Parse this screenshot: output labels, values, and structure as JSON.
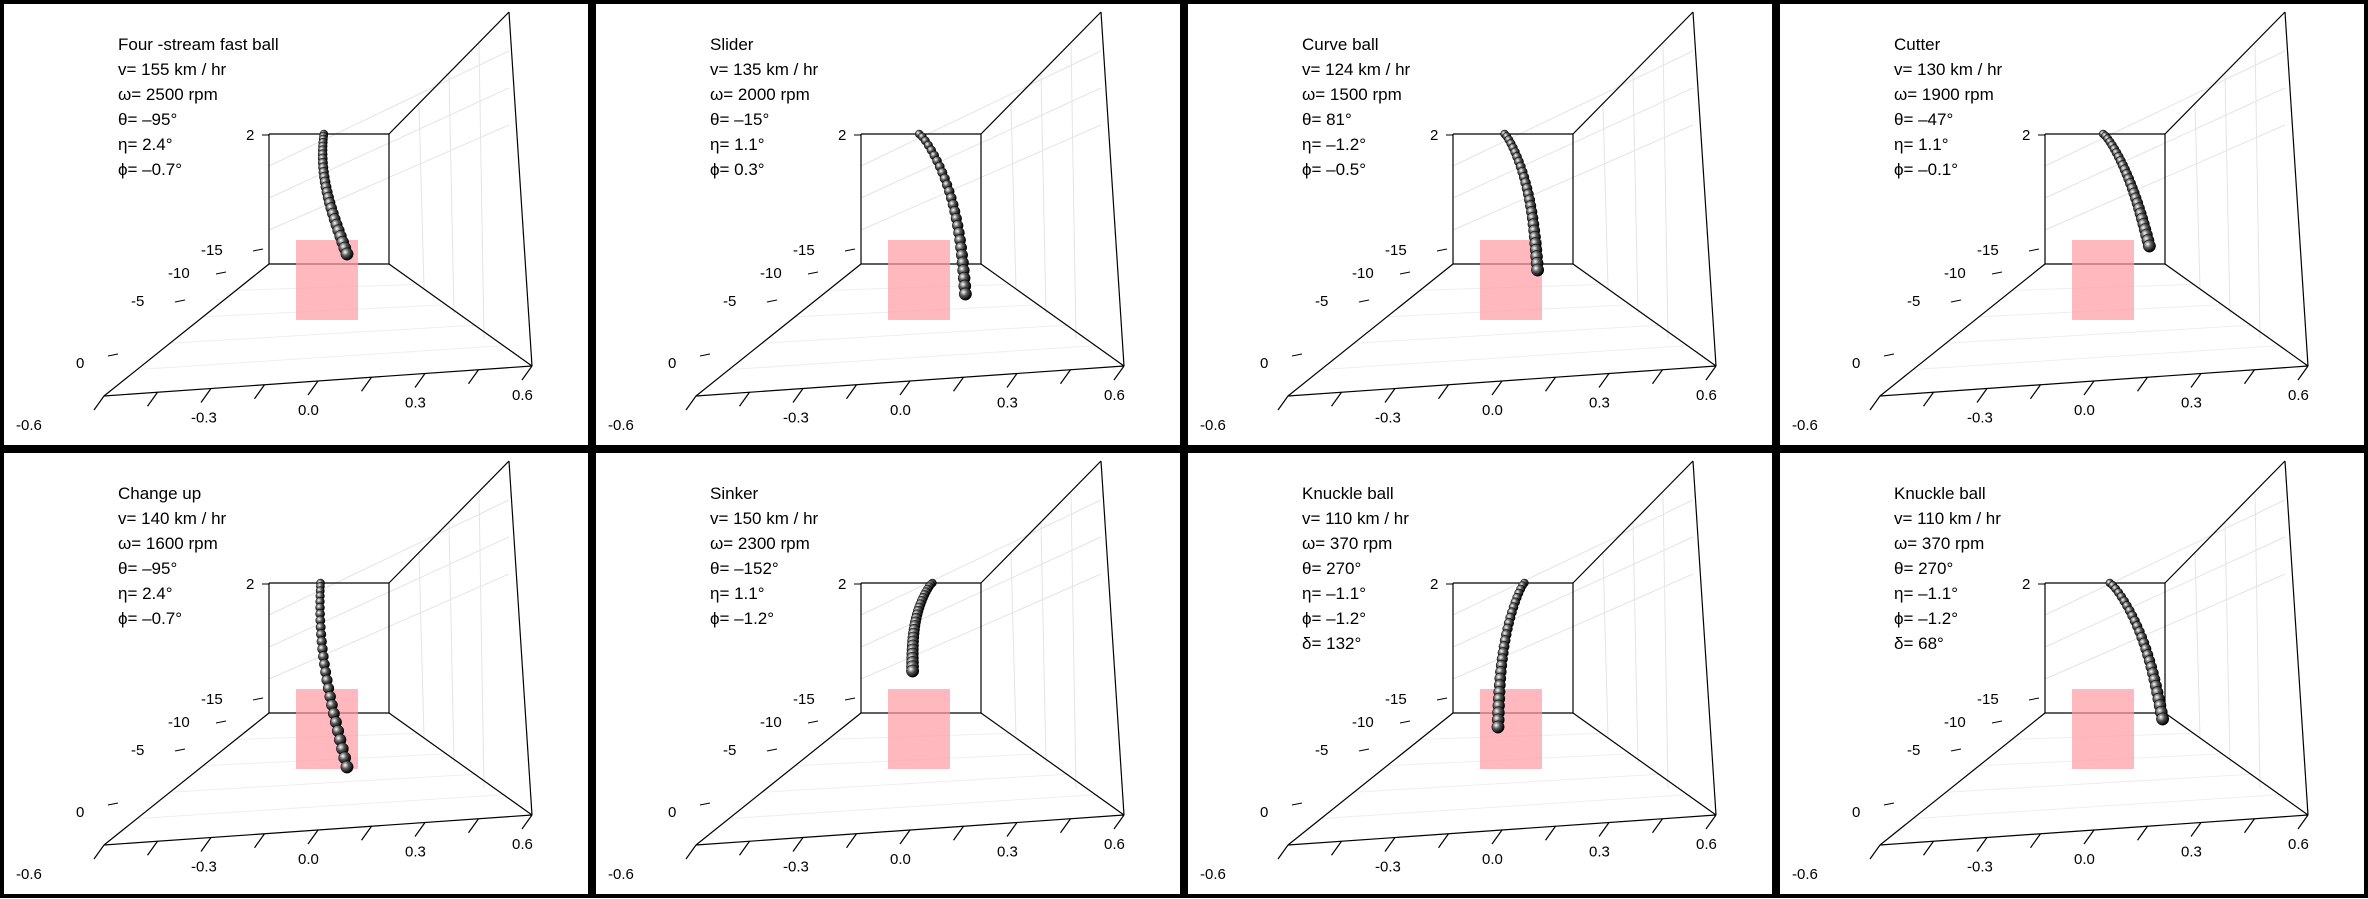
{
  "chart_data": [
    {
      "type": "scatter",
      "title": "Four -stream fast ball",
      "params": [
        "v= 155 km / hr",
        "ω= 2500 rpm",
        "θ=  –95°",
        "η=   2.4°",
        "ϕ=  –0.7°"
      ],
      "x_ticks": [
        "-0.6",
        "-0.3",
        "0.0",
        "0.3",
        "0.6"
      ],
      "z_ticks": [
        "0",
        "-5",
        "-10",
        "-15"
      ],
      "y_tick": "2",
      "trajectory": {
        "x_start": 0.03,
        "x_end": 0.1,
        "y_start": 2.0,
        "y_end": 0.5,
        "curve": -0.03
      },
      "zone_color": "#ff9aa2"
    },
    {
      "type": "scatter",
      "title": "Slider",
      "params": [
        "v= 135 km / hr",
        "ω= 2000 rpm",
        "θ=   –15°",
        "η=   1.1°",
        "ϕ=   0.3°"
      ],
      "x_ticks": [
        "-0.6",
        "-0.3",
        "0.0",
        "0.3",
        "0.6"
      ],
      "z_ticks": [
        "0",
        "-5",
        "-10",
        "-15"
      ],
      "y_tick": "2",
      "trajectory": {
        "x_start": 0.04,
        "x_end": 0.18,
        "y_start": 2.0,
        "y_end": 0.0,
        "curve": 0.03
      },
      "zone_color": "#ff9aa2"
    },
    {
      "type": "scatter",
      "title": "Curve ball",
      "params": [
        "v= 124 km / hr",
        "ω= 1500 rpm",
        "θ=   81°",
        "η=  –1.2°",
        "ϕ=  –0.5°"
      ],
      "x_ticks": [
        "-0.6",
        "-0.3",
        "0.0",
        "0.3",
        "0.6"
      ],
      "z_ticks": [
        "0",
        "-5",
        "-10",
        "-15"
      ],
      "y_tick": "2",
      "trajectory": {
        "x_start": 0.02,
        "x_end": 0.12,
        "y_start": 2.0,
        "y_end": 0.3,
        "curve": 0.02
      },
      "zone_color": "#ff9aa2"
    },
    {
      "type": "scatter",
      "title": "Cutter",
      "params": [
        "v= 130 km / hr",
        "ω= 1900 rpm",
        "θ=   –47°",
        "η=     1.1°",
        "ϕ=  –0.1°"
      ],
      "x_ticks": [
        "-0.6",
        "-0.3",
        "0.0",
        "0.3",
        "0.6"
      ],
      "z_ticks": [
        "0",
        "-5",
        "-10",
        "-15"
      ],
      "y_tick": "2",
      "trajectory": {
        "x_start": 0.04,
        "x_end": 0.18,
        "y_start": 2.0,
        "y_end": 0.6,
        "curve": 0.01
      },
      "zone_color": "#ff9aa2"
    },
    {
      "type": "scatter",
      "title": "Change up",
      "params": [
        "v= 140 km / hr",
        "ω= 1600 rpm",
        "θ=   –95°",
        "η=   2.4°",
        "ϕ=  –0.7°"
      ],
      "x_ticks": [
        "-0.6",
        "-0.3",
        "0.0",
        "0.3",
        "0.6"
      ],
      "z_ticks": [
        "0",
        "-5",
        "-10",
        "-15"
      ],
      "y_tick": "2",
      "trajectory": {
        "x_start": 0.02,
        "x_end": 0.1,
        "y_start": 2.0,
        "y_end": -0.3,
        "curve": -0.03
      },
      "zone_color": "#ff9aa2"
    },
    {
      "type": "scatter",
      "title": "Sinker",
      "params": [
        "v= 150 km / hr",
        "ω= 2300 rpm",
        "θ=   –152°",
        "η=   1.1°",
        "ϕ=  –1.2°"
      ],
      "x_ticks": [
        "-0.6",
        "-0.3",
        "0.0",
        "0.3",
        "0.6"
      ],
      "z_ticks": [
        "0",
        "-5",
        "-10",
        "-15"
      ],
      "y_tick": "2",
      "trajectory": {
        "x_start": 0.08,
        "x_end": 0.02,
        "y_start": 2.0,
        "y_end": 0.9,
        "curve": -0.02
      },
      "zone_color": "#ff9aa2"
    },
    {
      "type": "scatter",
      "title": "Knuckle ball",
      "params": [
        "v= 110 km / hr",
        "ω= 370 rpm",
        "θ=   270°",
        "η=  –1.1°",
        "ϕ=  –1.2°",
        "δ=    132°"
      ],
      "x_ticks": [
        "-0.6",
        "-0.3",
        "0.0",
        "0.3",
        "0.6"
      ],
      "z_ticks": [
        "0",
        "-5",
        "-10",
        "-15"
      ],
      "y_tick": "2",
      "trajectory": {
        "x_start": 0.08,
        "x_end": 0.0,
        "y_start": 2.0,
        "y_end": 0.2,
        "curve": -0.02
      },
      "zone_color": "#ff9aa2"
    },
    {
      "type": "scatter",
      "title": "Knuckle ball",
      "params": [
        "v= 110 km / hr",
        "ω= 370 rpm",
        "θ=   270°",
        "η=  –1.1°",
        "ϕ=  –1.2°",
        "δ=    68°"
      ],
      "x_ticks": [
        "-0.6",
        "-0.3",
        "0.0",
        "0.3",
        "0.6"
      ],
      "z_ticks": [
        "0",
        "-5",
        "-10",
        "-15"
      ],
      "y_tick": "2",
      "trajectory": {
        "x_start": 0.06,
        "x_end": 0.22,
        "y_start": 2.0,
        "y_end": 0.3,
        "curve": 0.02
      },
      "zone_color": "#ff9aa2"
    }
  ]
}
